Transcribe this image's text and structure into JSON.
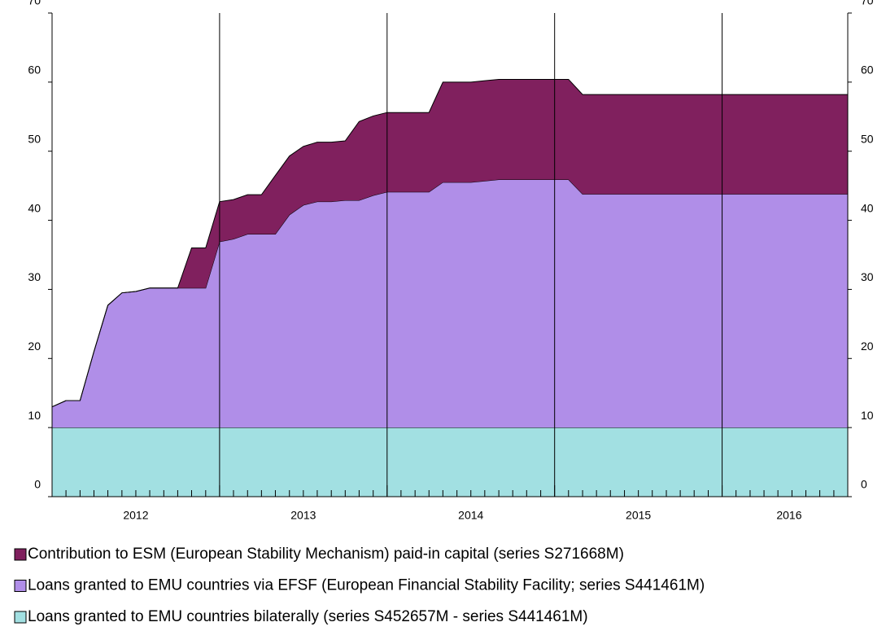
{
  "chart_data": {
    "type": "stacked-area",
    "x": [
      2012,
      2012.083,
      2012.167,
      2012.25,
      2012.333,
      2012.417,
      2012.5,
      2012.583,
      2012.667,
      2012.75,
      2012.833,
      2012.917,
      2013,
      2013.083,
      2013.167,
      2013.25,
      2013.333,
      2013.417,
      2013.5,
      2013.583,
      2013.667,
      2013.75,
      2013.833,
      2013.917,
      2014,
      2014.083,
      2014.167,
      2014.25,
      2014.333,
      2014.417,
      2014.5,
      2014.583,
      2014.667,
      2014.75,
      2014.833,
      2014.917,
      2015,
      2015.083,
      2015.167,
      2015.25,
      2015.333,
      2015.417,
      2015.5,
      2015.583,
      2015.667,
      2015.75,
      2015.833,
      2015.917,
      2016,
      2016.083,
      2016.167,
      2016.25,
      2016.333,
      2016.417,
      2016.5,
      2016.583,
      2016.667,
      2016.75
    ],
    "series": [
      {
        "name": "Loans granted to EMU countries bilaterally (series S452657M - series S441461M)",
        "color": "#a2e0e2",
        "values": [
          10,
          10,
          10,
          10,
          10,
          10,
          10,
          10,
          10,
          10,
          10,
          10,
          10,
          10,
          10,
          10,
          10,
          10,
          10,
          10,
          10,
          10,
          10,
          10,
          10,
          10,
          10,
          10,
          10,
          10,
          10,
          10,
          10,
          10,
          10,
          10,
          10,
          10,
          10,
          10,
          10,
          10,
          10,
          10,
          10,
          10,
          10,
          10,
          10,
          10,
          10,
          10,
          10,
          10,
          10,
          10,
          10,
          10
        ]
      },
      {
        "name": "Loans granted to EMU countries via EFSF (European Financial Stability Facility; series S441461M)",
        "color": "#b08ee8",
        "values": [
          3.0,
          3.9,
          3.9,
          11,
          17.7,
          19.5,
          19.7,
          20.2,
          20.2,
          20.2,
          20.2,
          20.2,
          26.9,
          27.3,
          28.0,
          28.0,
          28.0,
          30.8,
          32.2,
          32.7,
          32.7,
          32.9,
          32.9,
          33.6,
          34.1,
          34.1,
          34.1,
          34.1,
          35.5,
          35.5,
          35.5,
          35.7,
          35.9,
          35.9,
          35.9,
          35.9,
          35.9,
          35.9,
          33.8,
          33.8,
          33.8,
          33.8,
          33.8,
          33.8,
          33.8,
          33.8,
          33.8,
          33.8,
          33.8,
          33.8,
          33.8,
          33.8,
          33.8,
          33.8,
          33.8,
          33.8,
          33.8,
          33.8
        ]
      },
      {
        "name": "Contribution to ESM (European Stability Mechanism) paid-in capital (series S271668M)",
        "color": "#80205e",
        "values": [
          0,
          0,
          0,
          0,
          0,
          0,
          0,
          0,
          0,
          0,
          5.8,
          5.8,
          5.8,
          5.7,
          5.7,
          5.7,
          8.5,
          8.5,
          8.5,
          8.6,
          8.6,
          8.6,
          11.4,
          11.5,
          11.5,
          11.5,
          11.5,
          11.5,
          14.5,
          14.5,
          14.5,
          14.5,
          14.5,
          14.5,
          14.5,
          14.5,
          14.5,
          14.5,
          14.4,
          14.4,
          14.4,
          14.4,
          14.4,
          14.4,
          14.4,
          14.4,
          14.4,
          14.4,
          14.4,
          14.4,
          14.4,
          14.4,
          14.4,
          14.4,
          14.4,
          14.4,
          14.4,
          14.4
        ]
      }
    ],
    "xlim": [
      2012,
      2016.75
    ],
    "xticks": [
      {
        "value": 2012.5,
        "label": "2012"
      },
      {
        "value": 2013.5,
        "label": "2013"
      },
      {
        "value": 2014.5,
        "label": "2014"
      },
      {
        "value": 2015.5,
        "label": "2015"
      },
      {
        "value": 2016.4,
        "label": "2016"
      }
    ],
    "ylim": [
      0,
      70
    ],
    "yticks": [
      0,
      10,
      20,
      30,
      40,
      50,
      60,
      70
    ],
    "y2lim": [
      0,
      70
    ],
    "y2ticks": [
      0,
      10,
      20,
      30,
      40,
      50,
      60,
      70
    ]
  }
}
